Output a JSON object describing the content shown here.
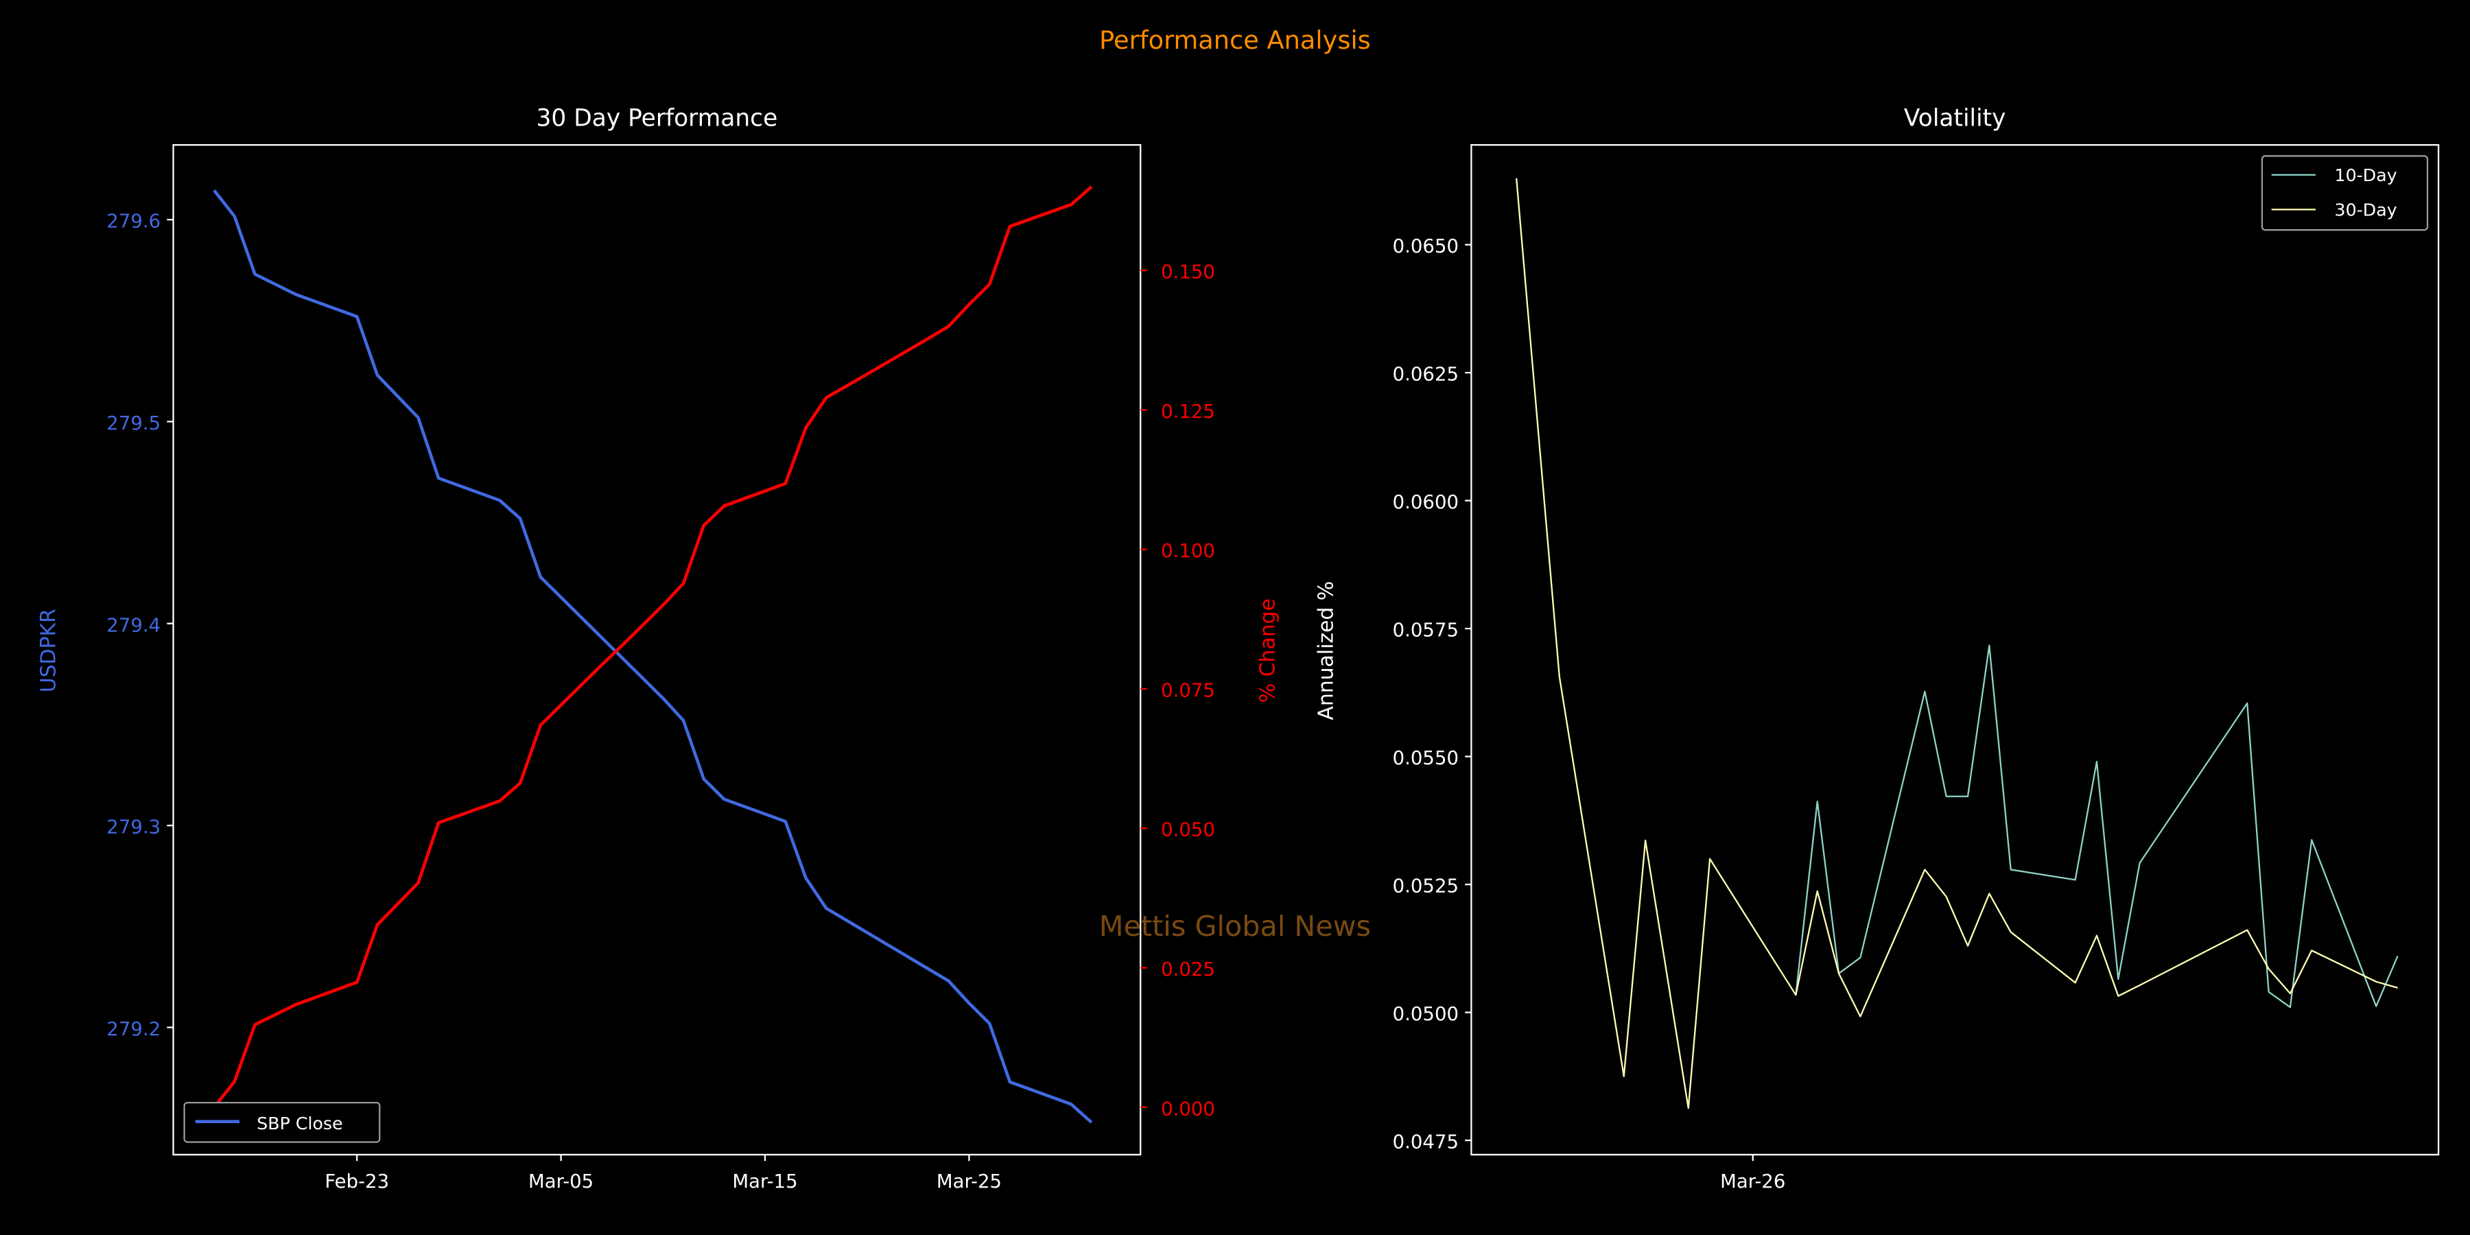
{
  "suptitle": "Performance Analysis",
  "watermark": "Mettis Global News",
  "colors": {
    "background": "#000000",
    "suptitle": "#ff8c00",
    "price": "#4169e1",
    "pct": "#ff0000",
    "vol10": "#8dd3c7",
    "vol30": "#ffffb3",
    "axis": "#ffffff",
    "watermark": "#7a4a12"
  },
  "chart_data": [
    {
      "type": "line",
      "title": "30 Day Performance",
      "xlabel": "",
      "ylabel": "USDPKR",
      "y2label": "% Change",
      "x_unit": "days relative to Feb-23",
      "x": [
        -7,
        -6,
        -5,
        -3,
        0,
        1,
        3,
        4,
        7,
        8,
        9,
        10,
        11,
        12,
        13,
        14,
        15,
        16,
        17,
        18,
        21,
        22,
        23,
        24,
        25,
        28,
        29,
        30,
        31,
        32,
        35,
        36
      ],
      "x_dates": [
        "Feb-16",
        "Feb-17",
        "Feb-18",
        "Feb-20",
        "Feb-23",
        "Feb-24",
        "Feb-26",
        "Feb-27",
        "Mar-02",
        "Mar-03",
        "Mar-04",
        "Mar-05",
        "Mar-06",
        "Mar-07",
        "Mar-08",
        "Mar-09",
        "Mar-10",
        "Mar-11",
        "Mar-12",
        "Mar-13",
        "Mar-16",
        "Mar-17",
        "Mar-18",
        "Mar-19",
        "Mar-20",
        "Mar-23",
        "Mar-24",
        "Mar-25",
        "Mar-26",
        "Mar-27",
        "Mar-30",
        "Mar-31"
      ],
      "series": [
        {
          "name": "SBP Close",
          "axis": "left",
          "values": [
            279.6145,
            279.6017,
            279.573,
            279.563,
            279.552,
            279.523,
            279.502,
            279.472,
            279.461,
            279.452,
            279.423,
            279.413,
            279.403,
            279.393,
            279.383,
            279.373,
            279.363,
            279.352,
            279.323,
            279.313,
            279.302,
            279.274,
            279.259,
            279.253,
            279.247,
            279.229,
            279.223,
            279.212,
            279.202,
            279.173,
            279.162,
            279.153
          ]
        },
        {
          "name": "% Change",
          "axis": "right",
          "values": [
            0,
            0.0046,
            0.0148,
            0.0184,
            0.0224,
            0.0327,
            0.0402,
            0.051,
            0.0549,
            0.0581,
            0.0685,
            0.0721,
            0.0757,
            0.0793,
            0.0828,
            0.0864,
            0.09,
            0.0939,
            0.1043,
            0.1078,
            0.1118,
            0.1218,
            0.1272,
            0.1293,
            0.1314,
            0.1378,
            0.14,
            0.1439,
            0.1475,
            0.1579,
            0.1618,
            0.165
          ]
        }
      ],
      "xticks": [
        {
          "day": 0,
          "label": "Feb-23"
        },
        {
          "day": 10,
          "label": "Mar-05"
        },
        {
          "day": 20,
          "label": "Mar-15"
        },
        {
          "day": 30,
          "label": "Mar-25"
        }
      ],
      "yticks": [
        "279.2",
        "279.3",
        "279.4",
        "279.5",
        "279.6"
      ],
      "y2ticks": [
        "0.000",
        "0.025",
        "0.050",
        "0.075",
        "0.100",
        "0.125",
        "0.150"
      ],
      "ylim": [
        279.137,
        279.637
      ],
      "y2lim": [
        -0.0085,
        0.1725
      ],
      "xlim": [
        -9,
        38.4
      ],
      "legend": {
        "position": "lower-left",
        "entries": [
          "SBP Close"
        ]
      }
    },
    {
      "type": "line",
      "title": "Volatility",
      "xlabel": "",
      "ylabel": "Annualized %",
      "x_unit": "days relative to Mar-26",
      "x": [
        -11,
        -9,
        -6,
        -5,
        -3,
        -2,
        2,
        3,
        4,
        5,
        8,
        9,
        10,
        11,
        12,
        15,
        16,
        17,
        18,
        23,
        24,
        25,
        26,
        29,
        30
      ],
      "series": [
        {
          "name": "10-Day",
          "values": [
            null,
            null,
            null,
            null,
            null,
            null,
            0.05034,
            0.05412,
            0.05076,
            0.05107,
            0.05627,
            0.05422,
            0.05422,
            0.05717,
            0.05279,
            0.05259,
            0.0549,
            0.05065,
            0.05292,
            0.05604,
            0.0504,
            0.0501,
            0.05337,
            0.05012,
            0.0511
          ]
        },
        {
          "name": "30-Day",
          "values": [
            0.0663,
            0.05656,
            0.04875,
            0.05336,
            0.04813,
            0.053,
            0.05034,
            0.05237,
            0.05076,
            0.04992,
            0.05279,
            0.05226,
            0.0513,
            0.05232,
            0.05157,
            0.05058,
            0.0515,
            0.05032,
            0.05053,
            0.05161,
            0.05085,
            0.05037,
            0.05121,
            0.0506,
            0.05048
          ]
        }
      ],
      "xticks": [
        {
          "day": 0,
          "label": "Mar-26"
        }
      ],
      "yticks": [
        "0.0475",
        "0.0500",
        "0.0525",
        "0.0550",
        "0.0575",
        "0.0600",
        "0.0625",
        "0.0650"
      ],
      "ylim": [
        0.04722,
        0.06695
      ],
      "xlim": [
        -13.1,
        31.9
      ],
      "legend": {
        "position": "upper-right",
        "entries": [
          "10-Day",
          "30-Day"
        ]
      }
    }
  ]
}
